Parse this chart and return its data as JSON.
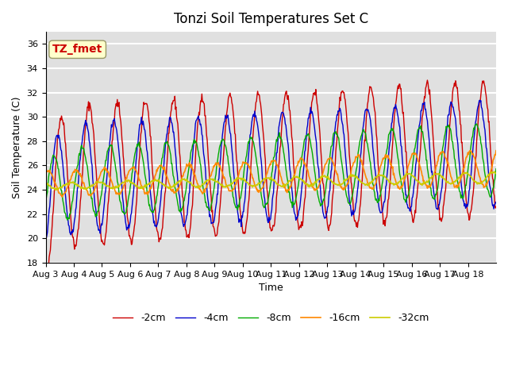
{
  "title": "Tonzi Soil Temperatures Set C",
  "xlabel": "Time",
  "ylabel": "Soil Temperature (C)",
  "ylim": [
    18,
    37
  ],
  "yticks": [
    18,
    20,
    22,
    24,
    26,
    28,
    30,
    32,
    34,
    36
  ],
  "x_labels": [
    "Aug 3",
    "Aug 4",
    "Aug 5",
    "Aug 6",
    "Aug 7",
    "Aug 8",
    "Aug 9",
    "Aug 10",
    "Aug 11",
    "Aug 12",
    "Aug 13",
    "Aug 14",
    "Aug 15",
    "Aug 16",
    "Aug 17",
    "Aug 18"
  ],
  "label_2cm": "-2cm",
  "label_4cm": "-4cm",
  "label_8cm": "-8cm",
  "label_16cm": "-16cm",
  "label_32cm": "-32cm",
  "color_2cm": "#cc0000",
  "color_4cm": "#0000cc",
  "color_8cm": "#00aa00",
  "color_16cm": "#ff8800",
  "color_32cm": "#cccc00",
  "annotation_text": "TZ_fmet",
  "annotation_color": "#cc0000",
  "annotation_bg": "#ffffcc",
  "bg_color": "#e0e0e0",
  "fig_bg": "#ffffff",
  "n_days": 16,
  "points_per_day": 48
}
